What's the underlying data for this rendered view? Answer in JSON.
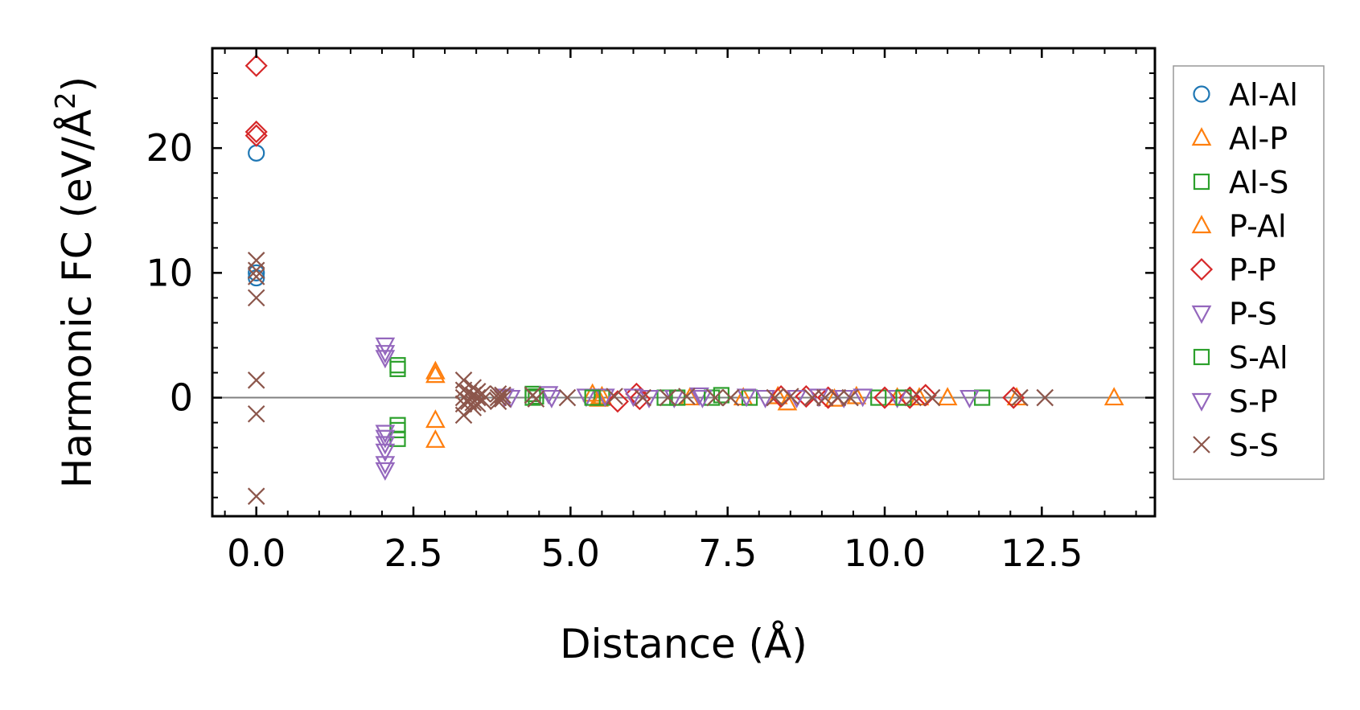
{
  "chart_data": {
    "type": "scatter",
    "xlabel": "Distance (Å)",
    "ylabel": "Harmonic FC (eV/Å²)",
    "ylabel_parts": {
      "main": "Harmonic FC (eV/Å",
      "sup": "2",
      "end": ")"
    },
    "xlim": [
      -0.7,
      14.3
    ],
    "ylim": [
      -9.5,
      28
    ],
    "xticks": [
      0.0,
      2.5,
      5.0,
      7.5,
      10.0,
      12.5
    ],
    "xtick_labels": [
      "0.0",
      "2.5",
      "5.0",
      "7.5",
      "10.0",
      "12.5"
    ],
    "yticks": [
      0,
      10,
      20
    ],
    "ytick_labels": [
      "0",
      "10",
      "20"
    ],
    "zero_line": true,
    "legend_position": "outside-right",
    "series": [
      {
        "name": "Al-Al",
        "marker": "circle",
        "color": "#1f77b4",
        "points": [
          [
            0,
            19.6
          ],
          [
            0,
            10.0
          ],
          [
            0,
            9.6
          ]
        ]
      },
      {
        "name": "Al-P",
        "marker": "triangle-up",
        "color": "#ff7f0e",
        "points": [
          [
            2.85,
            2.1
          ],
          [
            2.85,
            1.8
          ],
          [
            2.85,
            -1.8
          ],
          [
            2.85,
            -3.4
          ],
          [
            5.35,
            0.3
          ],
          [
            5.45,
            -0.1
          ],
          [
            7.75,
            0.0
          ],
          [
            8.45,
            -0.4
          ],
          [
            9.55,
            0.1
          ],
          [
            10.55,
            0.0
          ],
          [
            11.0,
            0.0
          ],
          [
            13.65,
            0.0
          ]
        ]
      },
      {
        "name": "Al-S",
        "marker": "square",
        "color": "#2ca02c",
        "points": [
          [
            2.25,
            2.6
          ],
          [
            2.25,
            2.3
          ],
          [
            2.25,
            -2.2
          ],
          [
            2.25,
            -2.6
          ],
          [
            2.25,
            -3.3
          ],
          [
            4.4,
            0.3
          ],
          [
            4.4,
            0.0
          ],
          [
            5.5,
            0.0
          ],
          [
            6.5,
            0.0
          ],
          [
            7.4,
            0.2
          ],
          [
            7.85,
            0.0
          ],
          [
            9.9,
            0.0
          ],
          [
            11.55,
            0.0
          ]
        ]
      },
      {
        "name": "P-Al",
        "marker": "triangle-up",
        "color": "#ff7f0e",
        "points": [
          [
            5.5,
            0.1
          ],
          [
            6.9,
            0.0
          ],
          [
            8.3,
            0.1
          ],
          [
            9.2,
            -0.1
          ],
          [
            10.2,
            0.0
          ],
          [
            12.1,
            0.0
          ]
        ]
      },
      {
        "name": "P-P",
        "marker": "diamond",
        "color": "#d62728",
        "points": [
          [
            0,
            26.6
          ],
          [
            0,
            21.3
          ],
          [
            0,
            21.0
          ],
          [
            5.75,
            -0.3
          ],
          [
            6.05,
            0.3
          ],
          [
            6.1,
            -0.1
          ],
          [
            8.35,
            0.1
          ],
          [
            8.75,
            0.1
          ],
          [
            9.1,
            0.0
          ],
          [
            10.0,
            0.0
          ],
          [
            10.4,
            0.0
          ],
          [
            10.65,
            0.2
          ],
          [
            12.05,
            0.0
          ]
        ]
      },
      {
        "name": "P-S",
        "marker": "triangle-down",
        "color": "#9467bd",
        "points": [
          [
            2.05,
            4.2
          ],
          [
            2.05,
            3.6
          ],
          [
            2.05,
            3.2
          ],
          [
            2.05,
            -2.8
          ],
          [
            2.05,
            -3.2
          ],
          [
            2.05,
            -3.7
          ],
          [
            2.05,
            -4.3
          ],
          [
            2.05,
            -5.3
          ],
          [
            2.05,
            -5.8
          ],
          [
            4.05,
            0.0
          ],
          [
            4.65,
            0.3
          ],
          [
            5.25,
            0.1
          ],
          [
            5.55,
            0.1
          ],
          [
            6.0,
            0.1
          ],
          [
            6.65,
            0.0
          ],
          [
            7.05,
            0.2
          ],
          [
            7.8,
            0.1
          ],
          [
            8.1,
            0.0
          ],
          [
            8.95,
            0.1
          ],
          [
            9.35,
            0.0
          ],
          [
            10.2,
            0.0
          ],
          [
            11.35,
            0.0
          ]
        ]
      },
      {
        "name": "S-Al",
        "marker": "square",
        "color": "#2ca02c",
        "points": [
          [
            4.45,
            0.1
          ],
          [
            5.35,
            0.0
          ],
          [
            6.7,
            0.0
          ],
          [
            7.25,
            0.0
          ],
          [
            10.3,
            0.0
          ]
        ]
      },
      {
        "name": "S-P",
        "marker": "triangle-down",
        "color": "#9467bd",
        "points": [
          [
            3.95,
            0.1
          ],
          [
            4.7,
            0.0
          ],
          [
            6.25,
            0.0
          ],
          [
            7.1,
            0.0
          ],
          [
            8.6,
            0.0
          ],
          [
            9.65,
            0.1
          ]
        ]
      },
      {
        "name": "S-S",
        "marker": "x",
        "color": "#8c564b",
        "points": [
          [
            0,
            11.0
          ],
          [
            0,
            10.2
          ],
          [
            0,
            9.7
          ],
          [
            0,
            8.0
          ],
          [
            0,
            1.4
          ],
          [
            0,
            -1.3
          ],
          [
            0,
            -7.9
          ],
          [
            3.3,
            1.4
          ],
          [
            3.3,
            0.6
          ],
          [
            3.3,
            0.0
          ],
          [
            3.3,
            -0.5
          ],
          [
            3.3,
            -1.4
          ],
          [
            3.38,
            0.4
          ],
          [
            3.38,
            -0.3
          ],
          [
            3.45,
            0.8
          ],
          [
            3.45,
            0.2
          ],
          [
            3.45,
            -0.4
          ],
          [
            3.45,
            -0.8
          ],
          [
            3.52,
            0.5
          ],
          [
            3.52,
            0.0
          ],
          [
            3.52,
            -0.5
          ],
          [
            3.6,
            0.3
          ],
          [
            3.6,
            -0.2
          ],
          [
            3.85,
            0.3
          ],
          [
            3.85,
            0.0
          ],
          [
            3.85,
            -0.3
          ],
          [
            3.92,
            0.2
          ],
          [
            3.92,
            -0.1
          ],
          [
            4.4,
            0.2
          ],
          [
            4.45,
            -0.1
          ],
          [
            4.95,
            0.0
          ],
          [
            5.7,
            0.1
          ],
          [
            6.15,
            0.0
          ],
          [
            6.55,
            0.0
          ],
          [
            6.85,
            0.1
          ],
          [
            7.3,
            0.0
          ],
          [
            7.55,
            0.0
          ],
          [
            8.25,
            0.0
          ],
          [
            8.5,
            0.1
          ],
          [
            8.85,
            0.0
          ],
          [
            9.05,
            0.0
          ],
          [
            9.25,
            0.0
          ],
          [
            9.45,
            0.0
          ],
          [
            10.45,
            0.0
          ],
          [
            10.75,
            0.0
          ],
          [
            12.15,
            0.0
          ],
          [
            12.55,
            0.0
          ]
        ]
      }
    ]
  }
}
